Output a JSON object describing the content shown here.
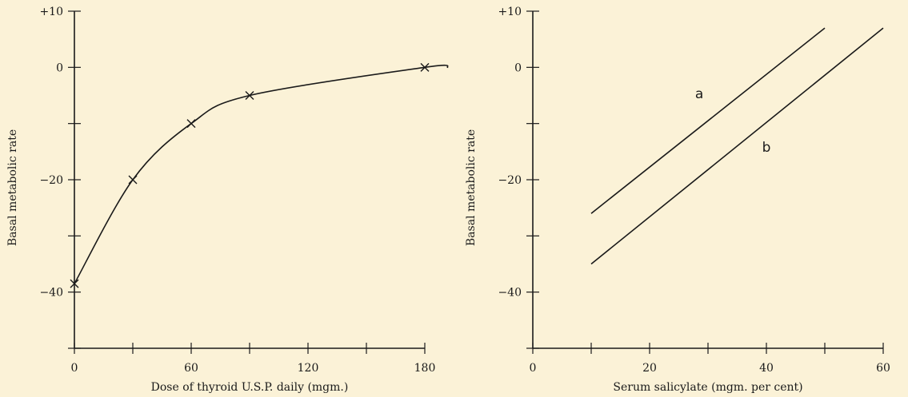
{
  "chart_data": [
    {
      "type": "line",
      "title": "",
      "xlabel": "Dose of thyroid U.S.P. daily (mgm.)",
      "ylabel": "Basal metabolic rate",
      "xlim": [
        0,
        192
      ],
      "ylim": [
        -50,
        10
      ],
      "xticks": [
        0,
        60,
        120,
        180
      ],
      "xtick_labels": [
        "0",
        "60",
        "120",
        "180"
      ],
      "xminor": [
        30,
        90,
        150
      ],
      "yticks": [
        10,
        0,
        -20,
        -40
      ],
      "ytick_labels": [
        "+10",
        "0",
        "−20",
        "−40"
      ],
      "yminor": [
        -10,
        -30,
        -50
      ],
      "grid": false,
      "series": [
        {
          "x": [
            0,
            30,
            60,
            90,
            180
          ],
          "y": [
            -38.5,
            -20,
            -10,
            -5,
            0
          ],
          "marker": "x"
        }
      ]
    },
    {
      "type": "line",
      "title": "",
      "xlabel": "Serum salicylate (mgm. per cent)",
      "ylabel": "Basal metabolic rate",
      "xlim": [
        0,
        60
      ],
      "ylim": [
        -50,
        10
      ],
      "xticks": [
        0,
        20,
        40,
        60
      ],
      "xtick_labels": [
        "0",
        "20",
        "40",
        "60"
      ],
      "xminor": [
        10,
        30,
        50
      ],
      "yticks": [
        10,
        0,
        -20,
        -40
      ],
      "ytick_labels": [
        "+10",
        "0",
        "−20",
        "−40"
      ],
      "yminor": [
        -10,
        -30,
        -50
      ],
      "grid": false,
      "series": [
        {
          "name": "a",
          "x": [
            10,
            50
          ],
          "y": [
            -26,
            7
          ]
        },
        {
          "name": "b",
          "x": [
            10,
            60
          ],
          "y": [
            -35,
            7
          ]
        }
      ],
      "annotations": [
        {
          "text": "a",
          "x": 28.5,
          "y": -5.5
        },
        {
          "text": "b",
          "x": 40,
          "y": -15
        }
      ]
    }
  ]
}
